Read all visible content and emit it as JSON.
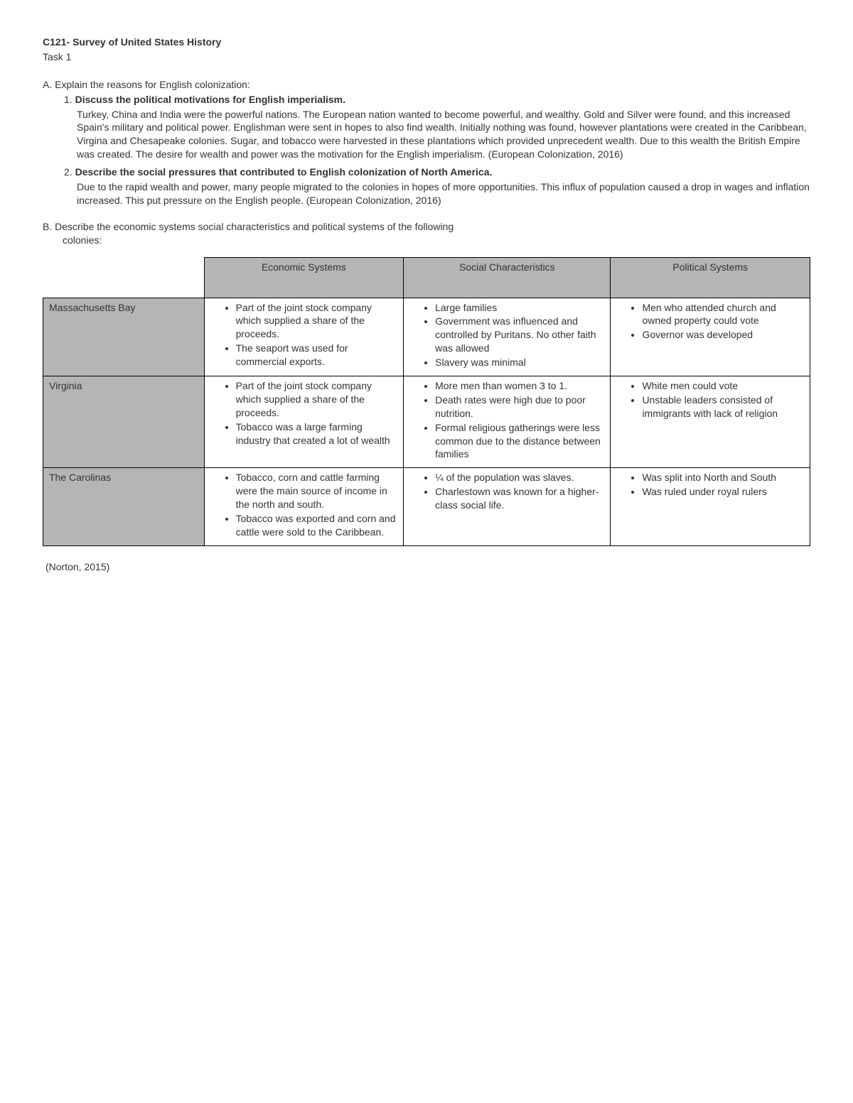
{
  "header": {
    "course": "C121- Survey of United States History",
    "task": "Task 1"
  },
  "sectionA": {
    "label": "A.",
    "intro": "Explain the reasons for English colonization:",
    "items": [
      {
        "num": "1.",
        "title": "Discuss the political motivations for English imperialism.",
        "body": "Turkey, China and India were the powerful nations.  The European nation wanted to become powerful, and wealthy.  Gold and Silver were found, and this increased Spain's military and political power.  Englishman were sent in hopes to also find wealth.  Initially nothing was found, however plantations were created in the Caribbean, Virgina and Chesapeake colonies.  Sugar, and tobacco were harvested in these plantations which provided unprecedent wealth.  Due to this wealth the British Empire was created.  The desire for wealth and power was the motivation for the English imperialism.  (European Colonization, 2016)"
      },
      {
        "num": "2.",
        "title": "Describe the social pressures that contributed to English colonization of North America.",
        "body": "Due to the rapid wealth and power, many people migrated to the colonies in hopes of more opportunities.  This influx of population caused a drop in wages and inflation increased.  This put pressure on the English people.  (European Colonization, 2016)"
      }
    ]
  },
  "sectionB": {
    "label": "B.",
    "intro_line1": "Describe the economic systems social characteristics and political systems of the following",
    "intro_line2": "colonies:"
  },
  "table": {
    "columns": [
      "Economic Systems",
      "Social Characteristics",
      "Political Systems"
    ],
    "header_bg": "#b5b5b5",
    "border_color": "#000000",
    "rows": [
      {
        "name": "Massachusetts Bay",
        "economic": [
          "Part of the joint stock company which supplied a share of the proceeds.",
          "The seaport was used for commercial exports."
        ],
        "social": [
          "Large families",
          "Government was influenced and controlled by Puritans.  No other faith was allowed",
          "Slavery was minimal"
        ],
        "political": [
          "Men who attended church and owned property could vote",
          "Governor was developed"
        ]
      },
      {
        "name": "Virginia",
        "economic": [
          "Part of the joint stock company which supplied a share of the proceeds.",
          "Tobacco was a large farming industry that created a lot of wealth"
        ],
        "social": [
          "More men than women 3 to 1.",
          "Death rates were high due to poor nutrition.",
          "Formal religious gatherings were less common due to the distance between families"
        ],
        "political": [
          "White men could vote",
          "Unstable leaders consisted of immigrants with lack of religion"
        ]
      },
      {
        "name": "The Carolinas",
        "economic": [
          "Tobacco, corn and cattle farming were the main source of income in the north and south.",
          "Tobacco was exported and corn and cattle were sold to the Caribbean."
        ],
        "social": [
          "¼ of the population was slaves.",
          "Charlestown was known for a higher-class social life."
        ],
        "political": [
          "Was split into North and South",
          "Was ruled under royal rulers"
        ]
      }
    ]
  },
  "citation": "(Norton, 2015)"
}
